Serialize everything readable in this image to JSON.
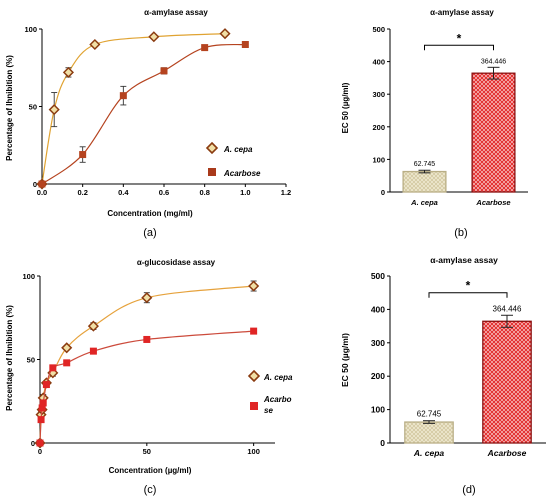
{
  "panels": [
    {
      "letter": "(a)",
      "chart_data": {
        "type": "scatter",
        "title": "α-amylase assay",
        "xlabel": "Concentration (mg/ml)",
        "ylabel": "Percentage of Ihnibition (%)",
        "xlim": [
          0,
          1.2
        ],
        "ylim": [
          0,
          100
        ],
        "xticks": [
          "0.0",
          "0.2",
          "0.4",
          "0.6",
          "0.8",
          "1.0",
          "1.2"
        ],
        "yticks": [
          "0",
          "50",
          "100"
        ],
        "series": [
          {
            "name": "A. cepa",
            "color": "#e0a332",
            "marker": "diamond",
            "x": [
              0,
              0.06,
              0.13,
              0.26,
              0.55,
              0.9
            ],
            "y": [
              0,
              48,
              72,
              90,
              95,
              97
            ],
            "err": [
              0,
              11,
              3,
              1,
              1,
              1
            ]
          },
          {
            "name": "Acarbose",
            "color": "#b5431f",
            "marker": "square",
            "x": [
              0,
              0.2,
              0.4,
              0.6,
              0.8,
              1.0
            ],
            "y": [
              0,
              19,
              57,
              73,
              88,
              90
            ],
            "err": [
              0,
              5,
              6,
              2,
              1,
              1
            ]
          }
        ]
      }
    },
    {
      "letter": "(b)",
      "chart_data": {
        "type": "bar",
        "title": "α-amylase assay",
        "ylabel": "EC 50 (µg/ml)",
        "ylim": [
          0,
          500
        ],
        "yticks": [
          "0",
          "100",
          "200",
          "300",
          "400",
          "500"
        ],
        "categories": [
          "A. cepa",
          "Acarbose"
        ],
        "values": [
          62.745,
          364.446
        ],
        "errors": [
          4,
          18
        ],
        "value_labels": [
          "62.745",
          "364.446"
        ],
        "significance": "*"
      }
    },
    {
      "letter": "(c)",
      "chart_data": {
        "type": "scatter",
        "title": "α-glucosidase assay",
        "xlabel": "Concentration (µg/ml)",
        "ylabel": "Percentage of Ihnibition (%)",
        "xlim": [
          0,
          110
        ],
        "ylim": [
          0,
          100
        ],
        "xticks": [
          "0",
          "50",
          "100"
        ],
        "yticks": [
          "0",
          "50",
          "100"
        ],
        "series": [
          {
            "name": "A. cepa",
            "color": "#d99a2b",
            "marker": "diamond",
            "x": [
              0,
              0.5,
              1,
              1.5,
              3,
              6,
              12.5,
              25,
              50,
              100
            ],
            "y": [
              0,
              17,
              20,
              27,
              36,
              42,
              57,
              70,
              87,
              94
            ],
            "err": [
              0,
              2,
              1,
              2,
              1,
              2,
              1,
              2,
              3,
              3
            ]
          },
          {
            "name": "Acarbo\nse",
            "color": "#e02525",
            "marker": "square",
            "x": [
              0,
              0.5,
              1,
              1.5,
              3,
              6,
              12.5,
              25,
              50,
              100
            ],
            "y": [
              0,
              14,
              21,
              24,
              35,
              45,
              48,
              55,
              62,
              67
            ],
            "err": [
              0,
              1,
              1,
              1,
              1,
              1,
              1,
              1,
              1,
              1
            ]
          }
        ]
      }
    },
    {
      "letter": "(d)",
      "chart_data": {
        "type": "bar",
        "title": "α-amylase assay",
        "ylabel": "EC 50 (µg/ml)",
        "ylim": [
          0,
          500
        ],
        "yticks": [
          "0",
          "100",
          "200",
          "300",
          "400",
          "500"
        ],
        "categories": [
          "A. cepa",
          "Acarbose"
        ],
        "values": [
          62.745,
          364.446
        ],
        "errors": [
          4,
          18
        ],
        "value_labels": [
          "62.745",
          "364.446"
        ],
        "significance": "*"
      }
    }
  ]
}
